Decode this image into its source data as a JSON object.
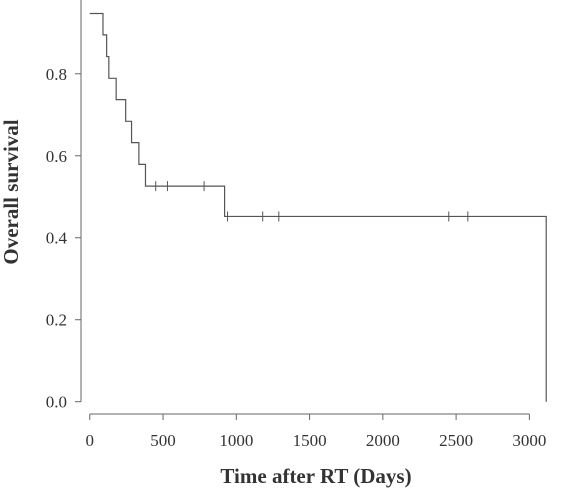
{
  "chart_data": {
    "type": "line",
    "xlabel": "Time after RT (Days)",
    "ylabel": "Overall survival",
    "xlim": [
      -60,
      3250
    ],
    "ylim": [
      -0.03,
      0.98
    ],
    "xticks": [
      0,
      500,
      1000,
      1500,
      2000,
      2500,
      3000
    ],
    "yticks": [
      0.0,
      0.2,
      0.4,
      0.6,
      0.8
    ],
    "ytick_labels": [
      "0.0",
      "0.2",
      "0.4",
      "0.6",
      "0.8"
    ],
    "grid": false,
    "curve_color": "#555555",
    "series": [
      {
        "steps": [
          {
            "x": 0,
            "y": 0.947
          },
          {
            "x": 90,
            "y": 0.895
          },
          {
            "x": 115,
            "y": 0.842
          },
          {
            "x": 130,
            "y": 0.789
          },
          {
            "x": 180,
            "y": 0.737
          },
          {
            "x": 245,
            "y": 0.684
          },
          {
            "x": 285,
            "y": 0.632
          },
          {
            "x": 335,
            "y": 0.579
          },
          {
            "x": 380,
            "y": 0.526
          },
          {
            "x": 920,
            "y": 0.452
          },
          {
            "x": 3115,
            "y": 0.0
          }
        ],
        "censored": [
          {
            "x": 450,
            "y": 0.526
          },
          {
            "x": 530,
            "y": 0.526
          },
          {
            "x": 780,
            "y": 0.526
          },
          {
            "x": 940,
            "y": 0.452
          },
          {
            "x": 1180,
            "y": 0.452
          },
          {
            "x": 1290,
            "y": 0.452
          },
          {
            "x": 2450,
            "y": 0.452
          },
          {
            "x": 2580,
            "y": 0.452
          }
        ]
      }
    ]
  }
}
